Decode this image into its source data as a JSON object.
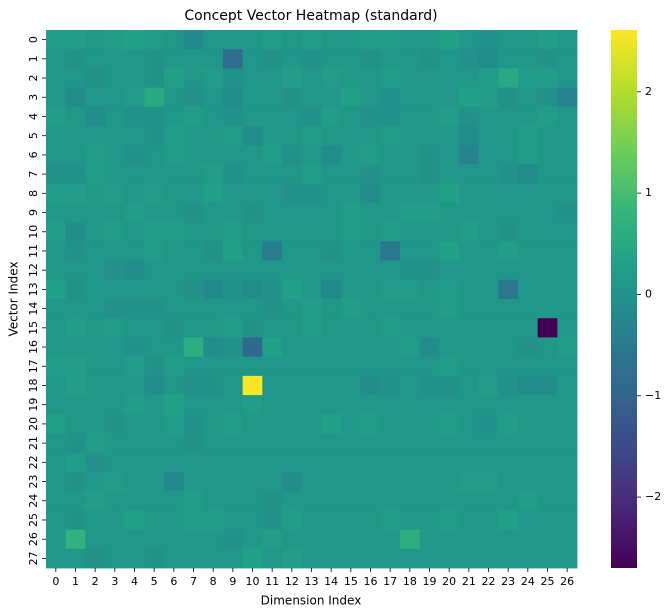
{
  "chart_data": {
    "type": "heatmap",
    "title": "Concept Vector Heatmap (standard)",
    "xlabel": "Dimension Index",
    "ylabel": "Vector Index",
    "colormap": "viridis",
    "x": [
      0,
      1,
      2,
      3,
      4,
      5,
      6,
      7,
      8,
      9,
      10,
      11,
      12,
      13,
      14,
      15,
      16,
      17,
      18,
      19,
      20,
      21,
      22,
      23,
      24,
      25,
      26
    ],
    "y": [
      0,
      1,
      2,
      3,
      4,
      5,
      6,
      7,
      8,
      9,
      10,
      11,
      12,
      13,
      14,
      15,
      16,
      17,
      18,
      19,
      20,
      21,
      22,
      23,
      24,
      25,
      26,
      27
    ],
    "zlim": [
      -2.7,
      2.61
    ],
    "zticks": [
      {
        "value": -2,
        "label": "−2"
      },
      {
        "value": -1,
        "label": "−1"
      },
      0,
      1,
      2
    ],
    "values": [
      [
        0.2,
        0.2,
        0.1,
        0.2,
        0.3,
        0.2,
        0.1,
        -0.2,
        0.1,
        0.1,
        0.1,
        0.2,
        0.1,
        0.2,
        0.1,
        0.1,
        0.2,
        0.2,
        0.1,
        0.1,
        0.3,
        0.1,
        0,
        0.1,
        0.1,
        0.2,
        0.1
      ],
      [
        0.1,
        0,
        0.1,
        0.1,
        0.1,
        0,
        0.1,
        0.1,
        0.1,
        -0.8,
        0.1,
        0,
        0.1,
        0,
        0.1,
        0.1,
        0,
        0.1,
        0.1,
        0,
        0.1,
        0,
        -0.1,
        0.1,
        0.1,
        0,
        0.1
      ],
      [
        0.1,
        0.1,
        0,
        0.1,
        0.1,
        0,
        0.3,
        0.1,
        0.2,
        0,
        0.1,
        0.1,
        0.2,
        0.1,
        0.2,
        0.1,
        0.1,
        0.2,
        0.1,
        0.1,
        0.1,
        0.1,
        0.2,
        0.5,
        0.2,
        0.2,
        0.1
      ],
      [
        0.1,
        -0.1,
        0.1,
        0.1,
        0.2,
        0.5,
        0.1,
        0,
        0.1,
        -0.1,
        0.1,
        0.1,
        0,
        0.1,
        0.1,
        0.3,
        0.1,
        0,
        0.1,
        0.1,
        0.1,
        0.3,
        0.2,
        0,
        0.1,
        0,
        -0.3
      ],
      [
        0.2,
        0.1,
        -0.1,
        0.1,
        0,
        0,
        0.1,
        0.2,
        0.1,
        0,
        0.1,
        0.1,
        0.1,
        0,
        0.2,
        0.1,
        0,
        0,
        0.1,
        0.1,
        0.2,
        0,
        0.1,
        0.1,
        0.1,
        0.2,
        0.1
      ],
      [
        0.1,
        0.1,
        0.1,
        0.1,
        0.1,
        0,
        0.2,
        0.1,
        0.1,
        0.2,
        -0.1,
        0.1,
        0.1,
        0.2,
        0.1,
        0.1,
        0.1,
        0.2,
        0.1,
        0.1,
        0.1,
        -0.1,
        0.1,
        0.1,
        0.2,
        0.1,
        0.1
      ],
      [
        0.1,
        0.1,
        0.2,
        0.1,
        0,
        0.1,
        0.2,
        0.1,
        0.1,
        0.1,
        0.1,
        0.2,
        0,
        0.1,
        -0.1,
        0.1,
        0.2,
        0.1,
        0.1,
        0,
        0.1,
        -0.3,
        0.1,
        0.1,
        0.2,
        0.1,
        0.1
      ],
      [
        0,
        0,
        0.2,
        0.1,
        0.1,
        0.1,
        0.1,
        0.1,
        0.2,
        0,
        0.1,
        0.1,
        0.1,
        0.2,
        0.1,
        0.1,
        0,
        0.1,
        0.1,
        0,
        0.1,
        0.1,
        0.1,
        0,
        -0.1,
        0.1,
        0.1
      ],
      [
        0.2,
        0.2,
        0.1,
        0.2,
        0.1,
        0.2,
        0.1,
        0.1,
        0.3,
        0.1,
        0.1,
        0.1,
        0,
        0,
        0.1,
        0.1,
        -0.1,
        0.1,
        0.1,
        0.1,
        0.3,
        0.1,
        0.1,
        0.1,
        0.1,
        0.1,
        0.1
      ],
      [
        0.1,
        0.1,
        0.1,
        0.1,
        0.2,
        0.1,
        0.1,
        0,
        0.1,
        0.1,
        0,
        0.1,
        0.1,
        0.1,
        0.1,
        0.2,
        0.1,
        0.1,
        0.2,
        0.2,
        0.1,
        0.1,
        0.1,
        0.1,
        0.1,
        0.1,
        0
      ],
      [
        0.2,
        -0.1,
        0.1,
        0.2,
        0.1,
        0.2,
        0.2,
        0.1,
        0.1,
        0.2,
        0.1,
        0.1,
        0.1,
        0.1,
        0.1,
        0.2,
        0.1,
        0.2,
        0.1,
        0.1,
        0.1,
        0.2,
        0.1,
        0,
        0.1,
        0.1,
        0.1
      ],
      [
        0.1,
        0,
        0.1,
        0.1,
        0.1,
        0.2,
        0.1,
        0.1,
        0,
        0.3,
        0.1,
        -0.4,
        0.1,
        0.1,
        0,
        0.1,
        0.1,
        -0.6,
        0.1,
        0.1,
        0.3,
        0.1,
        0.1,
        0.2,
        0.1,
        0.1,
        0.1
      ],
      [
        0.1,
        0.1,
        0.1,
        0,
        -0.1,
        0.1,
        0.1,
        0.1,
        0.1,
        0.1,
        0.1,
        0.1,
        0.1,
        0.1,
        0.1,
        0.1,
        0.1,
        0.1,
        0,
        0,
        0.1,
        0.1,
        0.1,
        0.1,
        0.1,
        0.1,
        0.1
      ],
      [
        0.3,
        0,
        0.1,
        0.1,
        0.1,
        0.1,
        0.1,
        0,
        -0.2,
        0,
        -0.1,
        0,
        0.3,
        0.1,
        -0.2,
        0.1,
        0.1,
        0.2,
        0.2,
        0.1,
        0.2,
        0.1,
        0.1,
        -0.6,
        0.1,
        0.1,
        0.1
      ],
      [
        0.1,
        0.1,
        0.1,
        0,
        0,
        0,
        0.1,
        0.1,
        0.1,
        0.1,
        0.1,
        0,
        0.1,
        0.2,
        0.1,
        0.2,
        0.1,
        0.1,
        0.1,
        0.1,
        0.2,
        0.1,
        0.1,
        0.1,
        0.1,
        0.1,
        0.1
      ],
      [
        0.1,
        0.2,
        0.1,
        0.2,
        0.1,
        0.1,
        0,
        0.1,
        0.1,
        0.2,
        0,
        0.1,
        0.1,
        0.2,
        0.1,
        0.1,
        0.1,
        0.2,
        0.1,
        0.1,
        0.1,
        0.1,
        0.1,
        0.1,
        0.1,
        -2.7,
        0.1
      ],
      [
        0.1,
        0.1,
        0.1,
        0.1,
        0,
        0.1,
        0.1,
        0.6,
        -0.1,
        0,
        -0.9,
        0.3,
        0.1,
        0.1,
        0.1,
        0.1,
        0.1,
        0.1,
        0.2,
        -0.1,
        0.1,
        0.1,
        0.1,
        0.1,
        0,
        0.1,
        0.2
      ],
      [
        0.2,
        0.2,
        0.1,
        0.1,
        0.2,
        0,
        0.2,
        0.1,
        0.1,
        0.1,
        0.1,
        0.1,
        0.1,
        0.1,
        0.1,
        0.1,
        0.1,
        0.1,
        0.1,
        0.1,
        0.2,
        0.1,
        0.1,
        0.1,
        0.1,
        0.1,
        0.1
      ],
      [
        0.1,
        0.2,
        0.1,
        0.1,
        0.1,
        -0.1,
        0.1,
        0,
        0,
        0.1,
        2.6,
        0.1,
        0.1,
        0.1,
        0.1,
        0.1,
        -0.1,
        0,
        0.1,
        0,
        0,
        0.1,
        0.2,
        0,
        -0.1,
        -0.1,
        0.1
      ],
      [
        0.1,
        0.1,
        0.1,
        0.1,
        0.2,
        0.1,
        0.3,
        0.1,
        0.1,
        0.1,
        0.2,
        0.1,
        0.1,
        0.1,
        0.1,
        0.1,
        0.1,
        0.1,
        0.1,
        0.1,
        0.1,
        0.1,
        0.1,
        0.1,
        0.1,
        0.1,
        0.1
      ],
      [
        0.3,
        0.1,
        0.1,
        0,
        0.1,
        0.1,
        0.2,
        0,
        0.1,
        0.2,
        0.1,
        0.1,
        0.1,
        0.1,
        0.3,
        0.1,
        0.2,
        0.1,
        0.1,
        0.1,
        0.2,
        0.1,
        0,
        0.2,
        0.1,
        0.1,
        0.1
      ],
      [
        0.1,
        0,
        0.2,
        0.1,
        0.1,
        0.1,
        0.1,
        0,
        0.1,
        0.1,
        0.1,
        0.1,
        0.1,
        0.1,
        0.1,
        0.1,
        0.1,
        0.1,
        0.1,
        0.1,
        0.1,
        0.1,
        0.1,
        0.1,
        0.1,
        0.1,
        0.1
      ],
      [
        0.1,
        0.2,
        0,
        0.1,
        0.1,
        0.1,
        0.1,
        0.1,
        0.1,
        0.1,
        0.1,
        0.1,
        0.1,
        0.1,
        0.1,
        0.1,
        0.1,
        0.1,
        0.1,
        0.1,
        0.1,
        0.1,
        0.1,
        0.1,
        0.1,
        0.1,
        0.1
      ],
      [
        0.1,
        0,
        0.1,
        0.2,
        0.1,
        0.1,
        -0.2,
        0.1,
        0.1,
        0.1,
        0.1,
        0.1,
        -0.1,
        0.1,
        0.1,
        0.1,
        0.1,
        0.1,
        0.1,
        0.1,
        0.1,
        0.2,
        0.2,
        0.1,
        0.1,
        0.1,
        0.1
      ],
      [
        0.1,
        0.1,
        0.2,
        0.1,
        0.1,
        0.1,
        0.1,
        0.2,
        0.1,
        0.1,
        0.1,
        0,
        0.1,
        0.1,
        0.1,
        0.1,
        0.1,
        0.1,
        0.1,
        0.1,
        0.1,
        0.1,
        0.1,
        0.1,
        0.2,
        0.1,
        0.1
      ],
      [
        0.1,
        0,
        0.1,
        0.1,
        0.3,
        0.1,
        0.1,
        0.2,
        0.2,
        0.1,
        0.1,
        0,
        0.2,
        0.1,
        0.1,
        0.1,
        0.1,
        0.2,
        0.1,
        0.1,
        0.2,
        0.1,
        0.1,
        0.3,
        0.1,
        0.1,
        0.1
      ],
      [
        0.1,
        0.7,
        0.1,
        0.1,
        0.1,
        0.1,
        0.1,
        0.1,
        0.1,
        0,
        0.1,
        0.2,
        0.1,
        0.1,
        0.1,
        0.1,
        0.1,
        0.1,
        0.6,
        0.1,
        0.1,
        0.1,
        0.1,
        0.1,
        0.1,
        0.1,
        0.1
      ],
      [
        0.1,
        0.1,
        0,
        0.1,
        0.1,
        0,
        0.1,
        0.1,
        0.1,
        0.1,
        0.3,
        0.1,
        0.2,
        0.1,
        0.1,
        0.1,
        0.1,
        0.1,
        0.1,
        0.1,
        0.1,
        0.1,
        0.1,
        0.1,
        0.1,
        0.1,
        0.1
      ]
    ]
  }
}
